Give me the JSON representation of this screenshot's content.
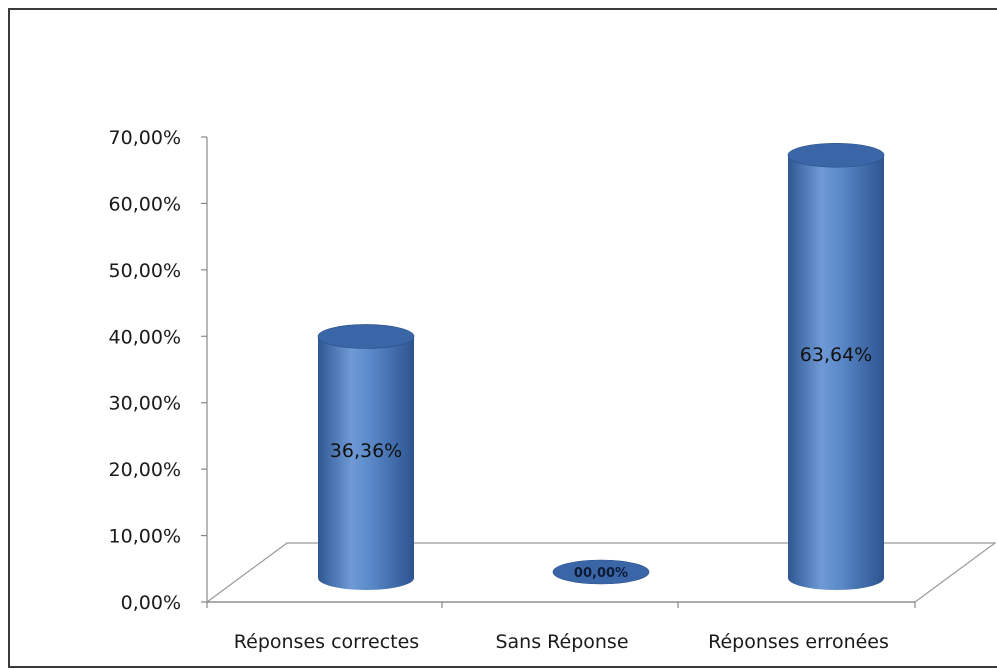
{
  "chart_data": {
    "type": "bar",
    "style": "3d-cylinder",
    "categories": [
      "Réponses correctes",
      "Sans Réponse",
      "Réponses erronées"
    ],
    "values": [
      36.36,
      0.0,
      63.64
    ],
    "data_labels": [
      "36,36%",
      "00,00%",
      "63,64%"
    ],
    "y_ticks": [
      "0,00%",
      "10,00%",
      "20,00%",
      "30,00%",
      "40,00%",
      "50,00%",
      "60,00%",
      "70,00%"
    ],
    "ylim": [
      0,
      70
    ],
    "grid": false,
    "legend": "none",
    "title": "",
    "xlabel": "",
    "ylabel": "",
    "colors": {
      "bar": "#4a7bc0",
      "bar_light": "#7aa6e0",
      "bar_dark": "#2f5893",
      "top": "#3a66a8",
      "axis": "#888888"
    }
  }
}
